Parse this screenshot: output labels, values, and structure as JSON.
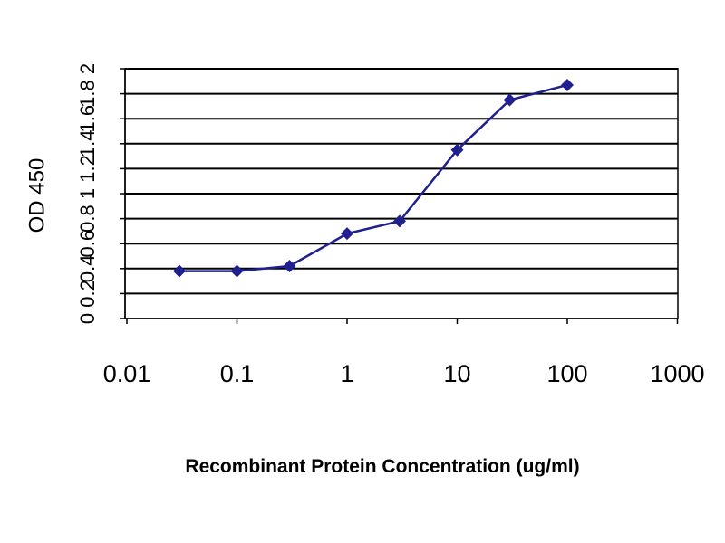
{
  "chart_data": {
    "type": "line",
    "title": "",
    "xlabel": "Recombinant Protein Concentration (ug/ml)",
    "ylabel": "OD 450",
    "x_scale": "log",
    "xlim": [
      0.01,
      1000
    ],
    "ylim": [
      0,
      2
    ],
    "x_ticks": [
      "0.01",
      "0.1",
      "1",
      "10",
      "100",
      "1000"
    ],
    "y_ticks": [
      "0",
      "0.2",
      "0.4",
      "0.6",
      "0.8",
      "1",
      "1.2",
      "1.4",
      "1.6",
      "1.8",
      "2"
    ],
    "grid": "horizontal",
    "legend": "none",
    "series": [
      {
        "color": "#1f1f8f",
        "marker": "diamond",
        "points": [
          {
            "x": 0.03,
            "y": 0.38
          },
          {
            "x": 0.1,
            "y": 0.38
          },
          {
            "x": 0.3,
            "y": 0.42
          },
          {
            "x": 1,
            "y": 0.68
          },
          {
            "x": 3,
            "y": 0.78
          },
          {
            "x": 10,
            "y": 1.35
          },
          {
            "x": 30,
            "y": 1.75
          },
          {
            "x": 100,
            "y": 1.87
          }
        ]
      }
    ]
  }
}
